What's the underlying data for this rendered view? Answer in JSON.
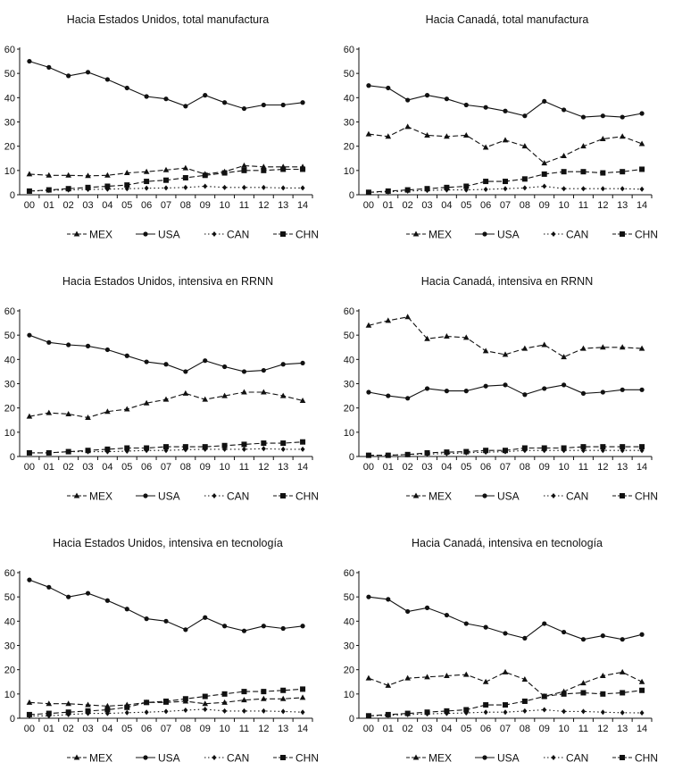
{
  "chart_data": [
    {
      "type": "line",
      "title": "Hacia Estados Unidos, total manufactura",
      "categories": [
        "00",
        "01",
        "02",
        "03",
        "04",
        "05",
        "06",
        "07",
        "08",
        "09",
        "10",
        "11",
        "12",
        "13",
        "14"
      ],
      "ylim": [
        0,
        60
      ],
      "yticks": [
        "0",
        "10",
        "20",
        "30",
        "40",
        "50",
        "60"
      ],
      "series": [
        {
          "name": "MEX",
          "marker": "triangle",
          "dash": "dash",
          "values": [
            8.5,
            8,
            8,
            7.8,
            8,
            9,
            9.5,
            10.2,
            11,
            8.5,
            9.5,
            12,
            11.5,
            11.5,
            11.5
          ]
        },
        {
          "name": "USA",
          "marker": "circle",
          "dash": "solid",
          "values": [
            55,
            52.5,
            49,
            50.5,
            47.5,
            44,
            40.5,
            39.5,
            36.5,
            41,
            38,
            35.5,
            37,
            37,
            38
          ]
        },
        {
          "name": "CAN",
          "marker": "diamond",
          "dash": "dot",
          "values": [
            1.5,
            1.8,
            2,
            2.2,
            2.3,
            2.5,
            2.7,
            2.8,
            3,
            3.5,
            3,
            3,
            3,
            2.8,
            2.8
          ]
        },
        {
          "name": "CHN",
          "marker": "square",
          "dash": "dash",
          "values": [
            1.5,
            2,
            2.5,
            3,
            3.5,
            4,
            5.5,
            6,
            7,
            8,
            9,
            10,
            10,
            10.5,
            10.5
          ]
        }
      ]
    },
    {
      "type": "line",
      "title": "Hacia Canadá, total manufactura",
      "categories": [
        "00",
        "01",
        "02",
        "03",
        "04",
        "05",
        "06",
        "07",
        "08",
        "09",
        "10",
        "11",
        "12",
        "13",
        "14"
      ],
      "ylim": [
        0,
        60
      ],
      "yticks": [
        "0",
        "10",
        "20",
        "30",
        "40",
        "50",
        "60"
      ],
      "series": [
        {
          "name": "MEX",
          "marker": "triangle",
          "dash": "dash",
          "values": [
            25,
            24,
            28,
            24.5,
            24,
            24.5,
            19.5,
            22.5,
            20,
            13,
            16,
            20,
            23,
            24,
            21
          ]
        },
        {
          "name": "USA",
          "marker": "circle",
          "dash": "solid",
          "values": [
            45,
            44,
            39,
            41,
            39.5,
            37,
            36,
            34.5,
            32.5,
            38.5,
            35,
            32,
            32.5,
            32,
            33.5
          ]
        },
        {
          "name": "CAN",
          "marker": "diamond",
          "dash": "dot",
          "values": [
            1,
            1.2,
            1.5,
            1.8,
            2,
            2,
            2.2,
            2.5,
            2.8,
            3.5,
            2.5,
            2.5,
            2.5,
            2.5,
            2.3
          ]
        },
        {
          "name": "CHN",
          "marker": "square",
          "dash": "dash",
          "values": [
            1,
            1.5,
            2,
            2.5,
            3,
            3.5,
            5.5,
            5.5,
            6.5,
            8.5,
            9.5,
            9.5,
            9,
            9.5,
            10.5
          ]
        }
      ]
    },
    {
      "type": "line",
      "title": "Hacia Estados Unidos, intensiva en RRNN",
      "categories": [
        "00",
        "01",
        "02",
        "03",
        "04",
        "05",
        "06",
        "07",
        "08",
        "09",
        "10",
        "11",
        "12",
        "13",
        "14"
      ],
      "ylim": [
        0,
        60
      ],
      "yticks": [
        "0",
        "10",
        "20",
        "30",
        "40",
        "50",
        "60"
      ],
      "series": [
        {
          "name": "MEX",
          "marker": "triangle",
          "dash": "dash",
          "values": [
            16.5,
            18,
            17.5,
            16,
            18.5,
            19.5,
            22,
            23.5,
            26,
            23.5,
            25,
            26.5,
            26.5,
            25,
            23
          ]
        },
        {
          "name": "USA",
          "marker": "circle",
          "dash": "solid",
          "values": [
            50,
            47,
            46,
            45.5,
            44,
            41.5,
            39,
            38,
            35,
            39.5,
            37,
            35,
            35.5,
            38,
            38.5
          ]
        },
        {
          "name": "CAN",
          "marker": "diamond",
          "dash": "dot",
          "values": [
            1.5,
            1.5,
            2,
            2,
            2,
            2.2,
            2.5,
            2.5,
            2.8,
            3,
            3,
            3,
            3.2,
            3,
            3
          ]
        },
        {
          "name": "CHN",
          "marker": "square",
          "dash": "dash",
          "values": [
            1.5,
            1.5,
            2,
            2.5,
            3,
            3.5,
            3.5,
            4,
            4,
            4,
            4.5,
            5,
            5.5,
            5.5,
            6
          ]
        }
      ]
    },
    {
      "type": "line",
      "title": "Hacia Canadá, intensiva en RRNN",
      "categories": [
        "00",
        "01",
        "02",
        "03",
        "04",
        "05",
        "06",
        "07",
        "08",
        "09",
        "10",
        "11",
        "12",
        "13",
        "14"
      ],
      "ylim": [
        0,
        60
      ],
      "yticks": [
        "0",
        "10",
        "20",
        "30",
        "40",
        "50",
        "60"
      ],
      "series": [
        {
          "name": "MEX",
          "marker": "triangle",
          "dash": "dash",
          "values": [
            54,
            56,
            57.5,
            48.5,
            49.5,
            49,
            43.5,
            42,
            44.5,
            46,
            41,
            44.5,
            45,
            45,
            44.5
          ]
        },
        {
          "name": "USA",
          "marker": "circle",
          "dash": "solid",
          "values": [
            26.5,
            25,
            24,
            28,
            27,
            27,
            29,
            29.5,
            25.5,
            28,
            29.5,
            26,
            26.5,
            27.5,
            27.5
          ]
        },
        {
          "name": "CAN",
          "marker": "diamond",
          "dash": "dot",
          "values": [
            0.5,
            0.5,
            0.8,
            1,
            1.2,
            1.5,
            1.8,
            2,
            2.5,
            2.5,
            2.5,
            2.5,
            2.5,
            2.5,
            2.5
          ]
        },
        {
          "name": "CHN",
          "marker": "square",
          "dash": "dash",
          "values": [
            0.5,
            0.5,
            0.8,
            1.5,
            1.8,
            2,
            2.5,
            2.5,
            3.5,
            3.5,
            3.5,
            4,
            4,
            4,
            4
          ]
        }
      ]
    },
    {
      "type": "line",
      "title": "Hacia Estados Unidos, intensiva en tecnología",
      "categories": [
        "00",
        "01",
        "02",
        "03",
        "04",
        "05",
        "06",
        "07",
        "08",
        "09",
        "10",
        "11",
        "12",
        "13",
        "14"
      ],
      "ylim": [
        0,
        60
      ],
      "yticks": [
        "0",
        "10",
        "20",
        "30",
        "40",
        "50",
        "60"
      ],
      "series": [
        {
          "name": "MEX",
          "marker": "triangle",
          "dash": "dash",
          "values": [
            6.5,
            6,
            6,
            5.5,
            5,
            5.5,
            6.5,
            6.5,
            7,
            6,
            6.5,
            7.5,
            8,
            8,
            8.5
          ]
        },
        {
          "name": "USA",
          "marker": "circle",
          "dash": "solid",
          "values": [
            57,
            54,
            50,
            51.5,
            48.5,
            45,
            41,
            40,
            36.5,
            41.5,
            38,
            36,
            38,
            37,
            38
          ]
        },
        {
          "name": "CAN",
          "marker": "diamond",
          "dash": "dot",
          "values": [
            1,
            1,
            1.5,
            2,
            2,
            2.3,
            2.5,
            2.8,
            3.3,
            3.7,
            3,
            3,
            3,
            2.8,
            2.5
          ]
        },
        {
          "name": "CHN",
          "marker": "square",
          "dash": "dash",
          "values": [
            1.5,
            2,
            2.5,
            3,
            3.5,
            4.5,
            6.5,
            7,
            8,
            9,
            10,
            11,
            11,
            11.5,
            12
          ]
        }
      ]
    },
    {
      "type": "line",
      "title": "Hacia Canadá, intensiva en tecnología",
      "categories": [
        "00",
        "01",
        "02",
        "03",
        "04",
        "05",
        "06",
        "07",
        "08",
        "09",
        "10",
        "11",
        "12",
        "13",
        "14"
      ],
      "ylim": [
        0,
        60
      ],
      "yticks": [
        "0",
        "10",
        "20",
        "30",
        "40",
        "50",
        "60"
      ],
      "series": [
        {
          "name": "MEX",
          "marker": "triangle",
          "dash": "dash",
          "values": [
            16.5,
            13.5,
            16.5,
            17,
            17.5,
            18,
            15,
            19,
            16,
            9,
            11,
            14.5,
            17.5,
            19,
            15
          ]
        },
        {
          "name": "USA",
          "marker": "circle",
          "dash": "solid",
          "values": [
            50,
            49,
            44,
            45.5,
            42.5,
            39,
            37.5,
            35,
            33,
            39,
            35.5,
            32.5,
            34,
            32.5,
            34.5
          ]
        },
        {
          "name": "CAN",
          "marker": "diamond",
          "dash": "dot",
          "values": [
            1,
            1.2,
            1.5,
            1.8,
            2,
            2.2,
            2.5,
            2.5,
            3,
            3.5,
            2.8,
            2.8,
            2.5,
            2.3,
            2.2
          ]
        },
        {
          "name": "CHN",
          "marker": "square",
          "dash": "dash",
          "values": [
            1,
            1.5,
            2,
            2.5,
            3,
            3.5,
            5.5,
            5.5,
            7,
            9,
            10,
            10.5,
            10,
            10.5,
            11.5
          ]
        }
      ]
    }
  ]
}
